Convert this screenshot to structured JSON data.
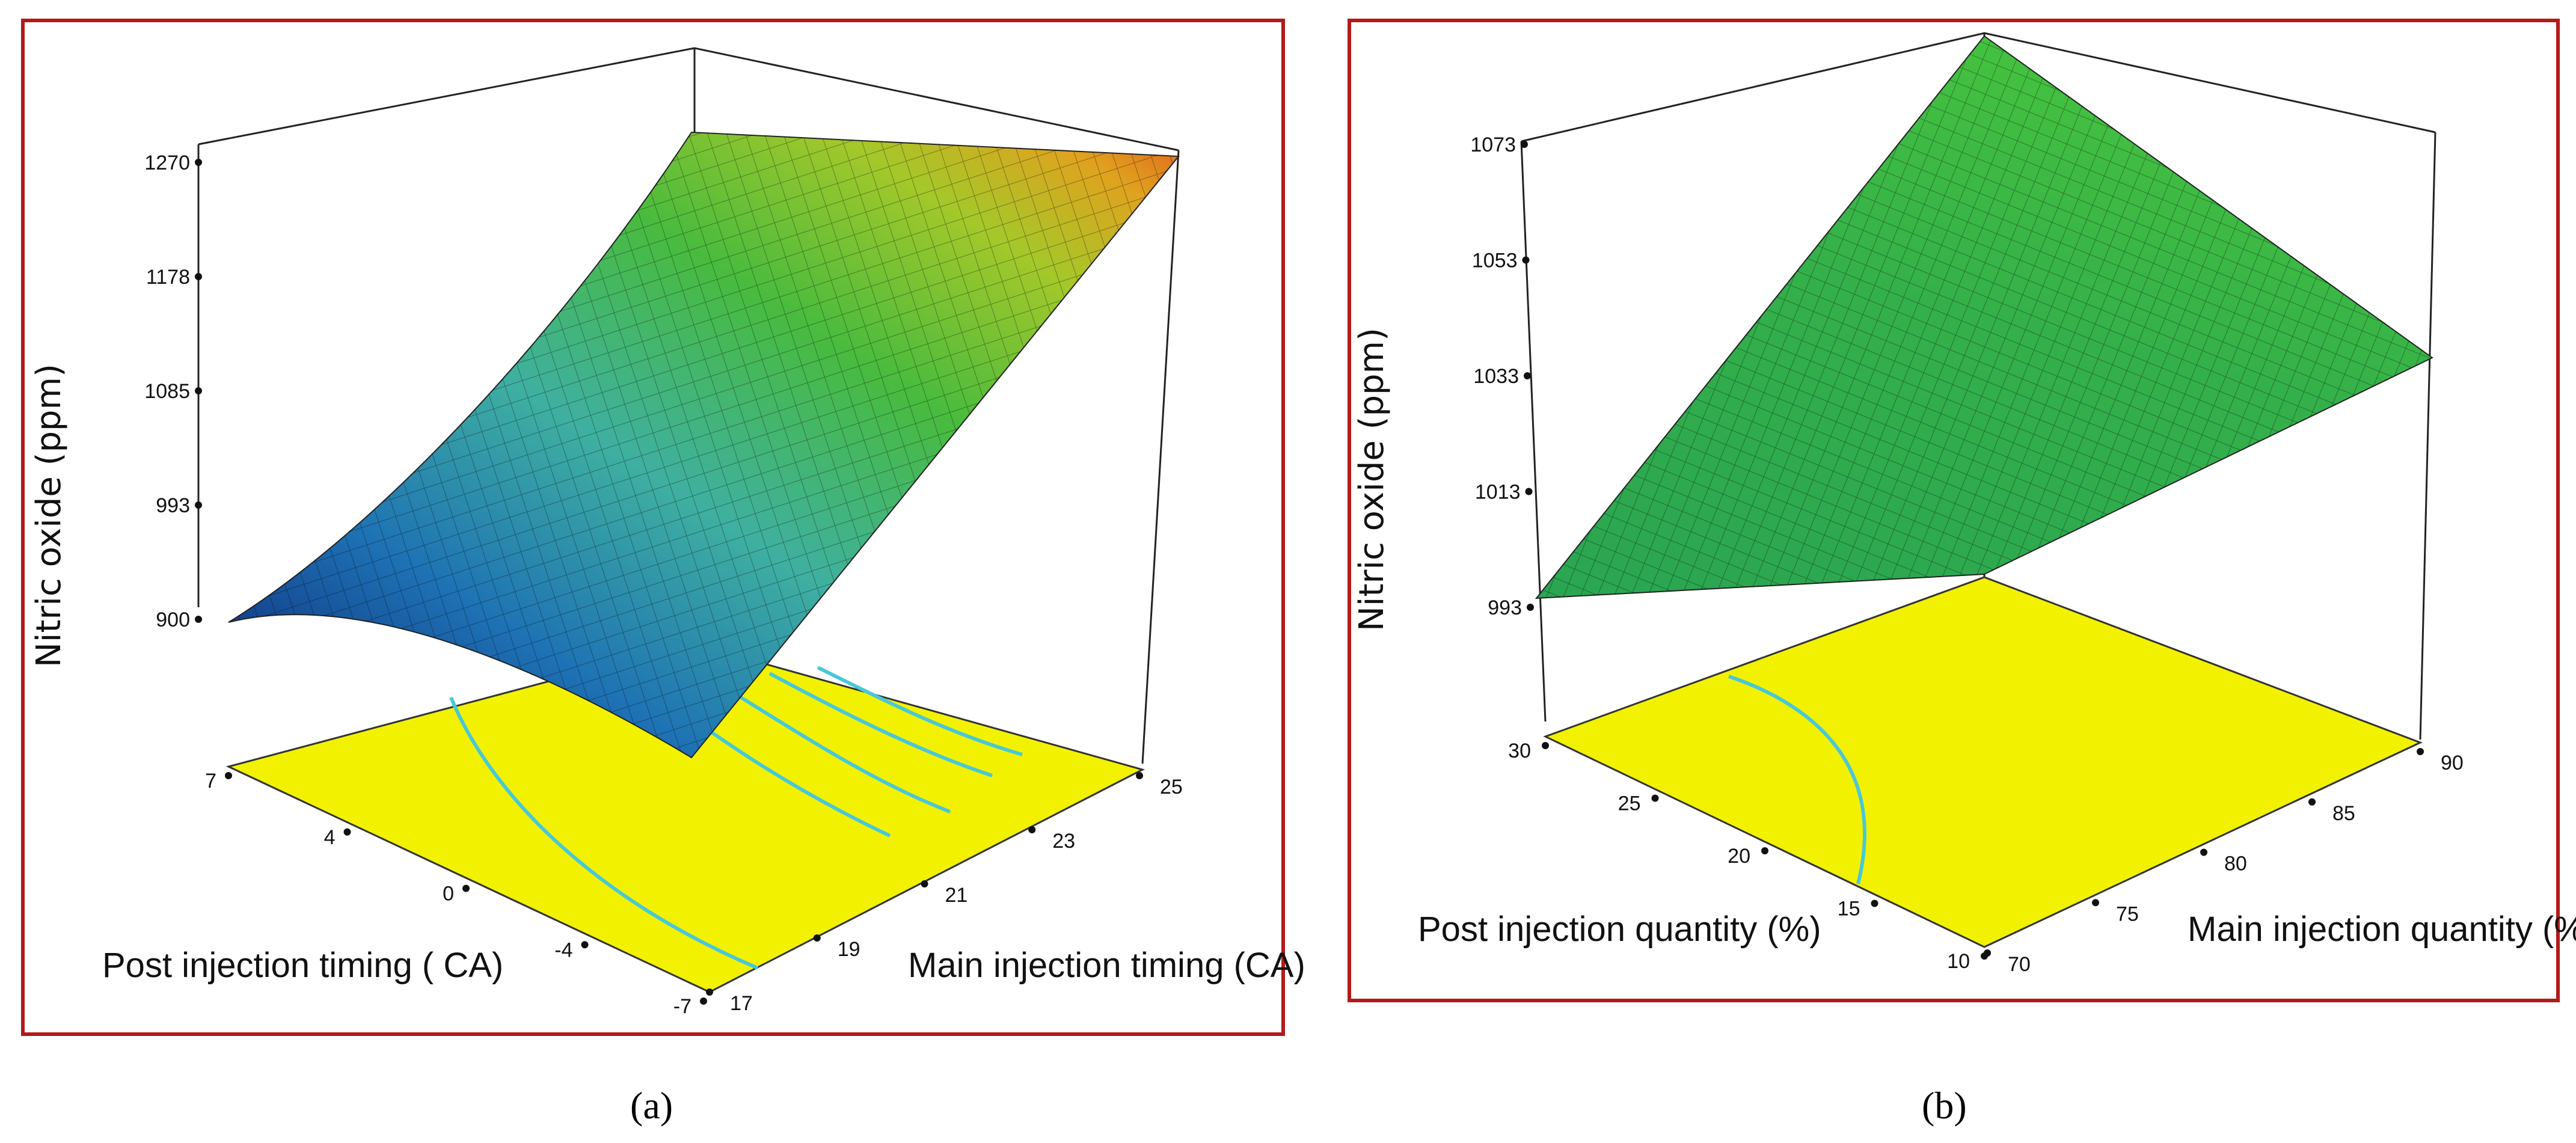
{
  "colors": {
    "frame": "#b21a1a",
    "floor": "#f2f200",
    "contour": "#48c8d8",
    "surface_low": "#0b1e6e",
    "surface_mid": "#2fb04a",
    "surface_high": "#e0701e"
  },
  "chart_data": [
    {
      "type": "surface3d",
      "panel_label": "a",
      "zlabel": "Nitric oxide (ppm)",
      "xlabel": "Post injection timing ( CA)",
      "ylabel": "Main injection timing (CA)",
      "x_ticks": [
        "7",
        "4",
        "0",
        "-4",
        "-7"
      ],
      "y_ticks": [
        "17",
        "19",
        "21",
        "23",
        "25"
      ],
      "z_ticks": [
        "900",
        "993",
        "1085",
        "1178",
        "1270"
      ],
      "xlim": [
        -7,
        7
      ],
      "ylim": [
        17,
        25
      ],
      "zlim": [
        900,
        1270
      ],
      "corner_values": [
        {
          "post": 7,
          "main": 17,
          "nox": 900
        },
        {
          "post": -7,
          "main": 17,
          "nox": 900
        },
        {
          "post": 7,
          "main": 25,
          "nox": 1240
        },
        {
          "post": -7,
          "main": 25,
          "nox": 1270
        }
      ]
    },
    {
      "type": "surface3d",
      "panel_label": "b",
      "zlabel": "Nitric oxide (ppm)",
      "xlabel": "Post injection quantity (%)",
      "ylabel": "Main injection quantity (%)",
      "x_ticks": [
        "30",
        "25",
        "20",
        "15",
        "10"
      ],
      "y_ticks": [
        "70",
        "75",
        "80",
        "85",
        "90"
      ],
      "z_ticks": [
        "993",
        "1013",
        "1033",
        "1053",
        "1073"
      ],
      "xlim": [
        10,
        30
      ],
      "ylim": [
        70,
        90
      ],
      "zlim": [
        993,
        1073
      ],
      "corner_values": [
        {
          "post": 30,
          "main": 70,
          "nox": 993
        },
        {
          "post": 10,
          "main": 70,
          "nox": 993
        },
        {
          "post": 30,
          "main": 90,
          "nox": 1080
        },
        {
          "post": 10,
          "main": 90,
          "nox": 1037
        }
      ]
    }
  ],
  "captions": {
    "a": "(a)",
    "b": "(b)"
  }
}
